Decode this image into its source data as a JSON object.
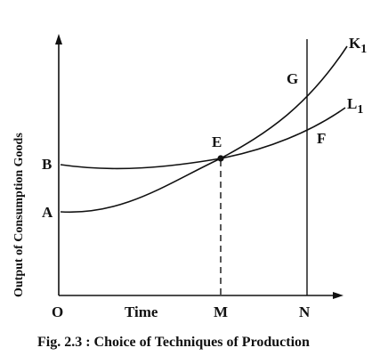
{
  "figure": {
    "caption": "Fig. 2.3 : Choice of Techniques of Production",
    "y_axis_title": "Output of Consumption Goods",
    "x_axis_title": "Time",
    "origin_label": "O",
    "points": {
      "A": "A",
      "B": "B",
      "E": "E",
      "F": "F",
      "G": "G",
      "M": "M",
      "N": "N"
    },
    "curves": {
      "k_letter": "K",
      "k_subscript": "1",
      "l_letter": "L",
      "l_subscript": "1"
    }
  }
}
